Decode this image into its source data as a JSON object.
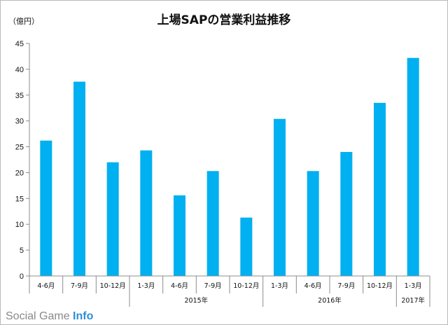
{
  "chart_data": {
    "type": "bar",
    "title": "上場SAPの営業利益推移",
    "unit_label": "（億円）",
    "categories": [
      "4-6月",
      "7-9月",
      "10-12月",
      "1-3月",
      "4-6月",
      "7-9月",
      "10-12月",
      "1-3月",
      "4-6月",
      "7-9月",
      "10-12月",
      "1-3月"
    ],
    "values": [
      26.2,
      37.6,
      22.0,
      24.3,
      15.6,
      20.3,
      11.3,
      30.4,
      20.3,
      24.0,
      33.5,
      42.2
    ],
    "year_groups": [
      {
        "label": "2015年",
        "start": 3,
        "end": 6
      },
      {
        "label": "2016年",
        "start": 7,
        "end": 10
      },
      {
        "label": "2017年",
        "start": 11,
        "end": 11
      }
    ],
    "ylim": [
      0,
      45
    ],
    "yticks": [
      0,
      5,
      10,
      15,
      20,
      25,
      30,
      35,
      40,
      45
    ],
    "grid": false,
    "bar_color": "#00b0f0"
  },
  "watermark": {
    "prefix": "Social Game ",
    "suffix": "Info"
  }
}
